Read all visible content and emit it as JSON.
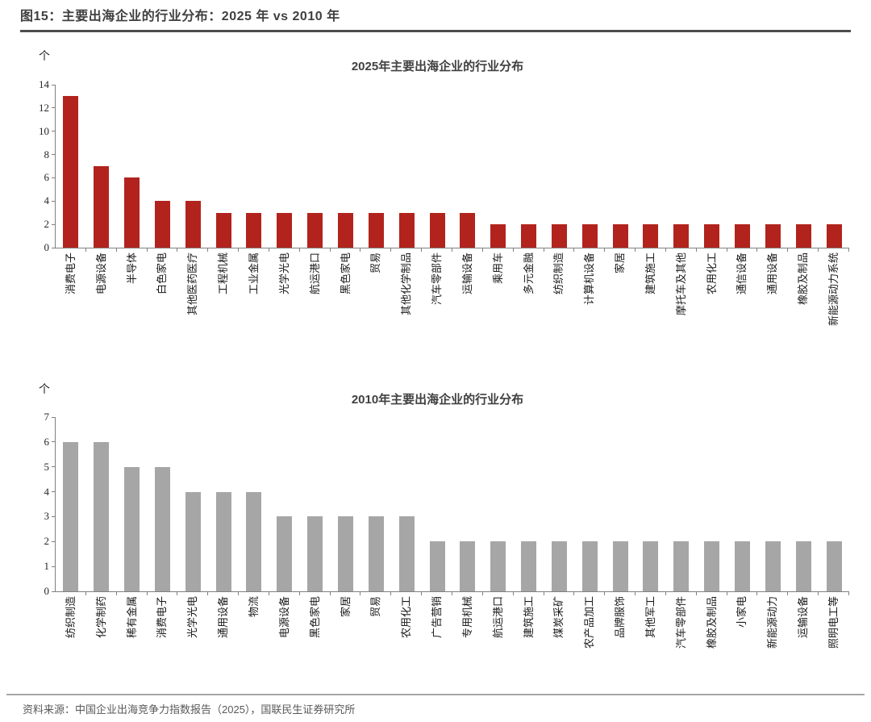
{
  "figure": {
    "title": "图15：主要出海企业的行业分布：2025 年 vs 2010 年",
    "source": "资料来源：中国企业出海竞争力指数报告（2025），国联民生证券研究所"
  },
  "colors": {
    "bar_2025": "#b2231d",
    "bar_2010": "#a6a6a6",
    "axis": "#808080",
    "title_text": "#404040",
    "header_rule": "#4d4d4d",
    "footer_rule": "#a6a6a6"
  },
  "chart_data": [
    {
      "type": "bar",
      "title": "2025年主要出海企业的行业分布",
      "unit": "个",
      "ylabel": "个",
      "xlabel": "",
      "ylim": [
        0,
        14
      ],
      "ytick_step": 2,
      "grid": false,
      "legend": "none",
      "bar_color": "#b2231d",
      "categories": [
        "消费电子",
        "电源设备",
        "半导体",
        "白色家电",
        "其他医药医疗",
        "工程机械",
        "工业金属",
        "光学光电",
        "航运港口",
        "黑色家电",
        "贸易",
        "其他化学制品",
        "汽车零部件",
        "运输设备",
        "乘用车",
        "多元金融",
        "纺织制造",
        "计算机设备",
        "家居",
        "建筑施工",
        "摩托车及其他",
        "农用化工",
        "通信设备",
        "通用设备",
        "橡胶及制品",
        "新能源动力系统"
      ],
      "values": [
        13,
        7,
        6,
        4,
        4,
        3,
        3,
        3,
        3,
        3,
        3,
        3,
        3,
        3,
        2,
        2,
        2,
        2,
        2,
        2,
        2,
        2,
        2,
        2,
        2,
        2
      ]
    },
    {
      "type": "bar",
      "title": "2010年主要出海企业的行业分布",
      "unit": "个",
      "ylabel": "个",
      "xlabel": "",
      "ylim": [
        0,
        7
      ],
      "ytick_step": 1,
      "grid": false,
      "legend": "none",
      "bar_color": "#a6a6a6",
      "categories": [
        "纺织制造",
        "化学制药",
        "稀有金属",
        "消费电子",
        "光学光电",
        "通用设备",
        "物流",
        "电源设备",
        "黑色家电",
        "家居",
        "贸易",
        "农用化工",
        "广告营销",
        "专用机械",
        "航运港口",
        "建筑施工",
        "煤炭采矿",
        "农产品加工",
        "品牌服饰",
        "其他军工",
        "汽车零部件",
        "橡胶及制品",
        "小家电",
        "新能源动力",
        "运输设备",
        "照明电工等"
      ],
      "values": [
        6,
        6,
        5,
        5,
        4,
        4,
        4,
        3,
        3,
        3,
        3,
        3,
        2,
        2,
        2,
        2,
        2,
        2,
        2,
        2,
        2,
        2,
        2,
        2,
        2,
        2
      ]
    }
  ]
}
